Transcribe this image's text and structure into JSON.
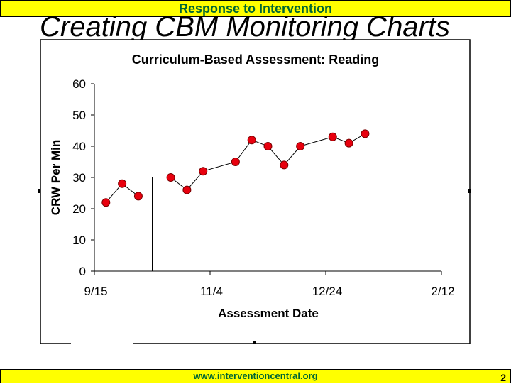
{
  "header": {
    "banner_title": "Response to Intervention",
    "slide_title": "Creating CBM Monitoring Charts"
  },
  "footer": {
    "url": "www.interventioncentral.org",
    "page_number": "2"
  },
  "colors": {
    "banner": "#ffff00",
    "banner_text": "#006633",
    "marker": "#e8000e"
  },
  "chart_data": {
    "type": "line",
    "title": "Curriculum-Based Assessment: Reading",
    "xlabel": "Assessment Date",
    "ylabel": "CRW Per Min",
    "ylim": [
      0,
      60
    ],
    "yticks": [
      "0",
      "10",
      "20",
      "30",
      "40",
      "50",
      "60"
    ],
    "xlim": [
      "9/15",
      "2/12"
    ],
    "xticks": [
      "9/15",
      "11/4",
      "12/24",
      "2/12"
    ],
    "phase_change_line": "10/10",
    "series": [
      {
        "points": [
          {
            "x": "9/20",
            "y": 22
          },
          {
            "x": "9/27",
            "y": 28
          },
          {
            "x": "10/4",
            "y": 24
          },
          {
            "x": "10/18",
            "y": 30
          },
          {
            "x": "10/25",
            "y": 26
          },
          {
            "x": "11/1",
            "y": 32
          },
          {
            "x": "11/15",
            "y": 35
          },
          {
            "x": "11/22",
            "y": 42
          },
          {
            "x": "11/29",
            "y": 40
          },
          {
            "x": "12/6",
            "y": 34
          },
          {
            "x": "12/13",
            "y": 40
          },
          {
            "x": "12/27",
            "y": 43
          },
          {
            "x": "1/3",
            "y": 41
          },
          {
            "x": "1/10",
            "y": 44
          }
        ]
      }
    ],
    "connected_segments": [
      [
        0,
        2
      ],
      [
        3,
        13
      ]
    ]
  }
}
